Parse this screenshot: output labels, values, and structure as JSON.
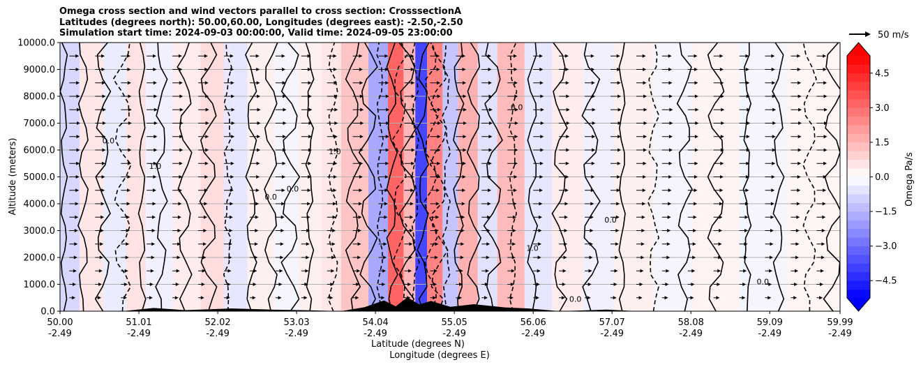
{
  "titles": {
    "line1": "Omega cross section and wind vectors parallel to cross section: CrosssectionA",
    "line2": "Latitudes (degrees north): 50.00,60.00, Longitudes (degrees east): -2.50,-2.50",
    "line3": "Simulation start time: 2024-09-03 00:00:00, Valid time: 2024-09-05 23:00:00"
  },
  "wind_key": {
    "label": "50 m/s"
  },
  "chart_data": {
    "type": "heatmap",
    "title": "Omega cross section and wind vectors parallel to cross section: CrosssectionA",
    "ylabel": "Altitude (meters)",
    "xlabel_lat": "Latitude (degrees N)",
    "xlabel_lon": "Longitude (degrees E)",
    "ylim": [
      0,
      10000
    ],
    "xlim": [
      50.0,
      59.99
    ],
    "y_ticks": [
      "0.0",
      "1000.0",
      "2000.0",
      "3000.0",
      "4000.0",
      "5000.0",
      "6000.0",
      "7000.0",
      "8000.0",
      "9000.0",
      "10000.0"
    ],
    "y_tick_values": [
      0,
      1000,
      2000,
      3000,
      4000,
      5000,
      6000,
      7000,
      8000,
      9000,
      10000
    ],
    "x_ticks": [
      {
        "lat": "50.00",
        "lon": "-2.49",
        "v": 50.0
      },
      {
        "lat": "51.01",
        "lon": "-2.49",
        "v": 51.01
      },
      {
        "lat": "52.02",
        "lon": "-2.49",
        "v": 52.02
      },
      {
        "lat": "53.03",
        "lon": "-2.49",
        "v": 53.03
      },
      {
        "lat": "54.04",
        "lon": "-2.49",
        "v": 54.04
      },
      {
        "lat": "55.05",
        "lon": "-2.49",
        "v": 55.05
      },
      {
        "lat": "56.06",
        "lon": "-2.49",
        "v": 56.06
      },
      {
        "lat": "57.07",
        "lon": "-2.49",
        "v": 57.07
      },
      {
        "lat": "58.08",
        "lon": "-2.49",
        "v": 58.08
      },
      {
        "lat": "59.09",
        "lon": "-2.49",
        "v": 59.09
      },
      {
        "lat": "59.99",
        "lon": "-2.49",
        "v": 59.99
      }
    ],
    "colorbar": {
      "label": "Omega Pa/s",
      "range": [
        -5.25,
        5.25
      ],
      "ticks": [
        "4.5",
        "3.0",
        "1.5",
        "0.0",
        "−1.5",
        "−3.0",
        "−4.5"
      ],
      "tick_values": [
        4.5,
        3.0,
        1.5,
        0.0,
        -1.5,
        -3.0,
        -4.5
      ],
      "extend": "both",
      "cmap": "bwr"
    },
    "omega_bands": [
      {
        "x0": 50.0,
        "x1": 50.25,
        "omega": -0.8
      },
      {
        "x0": 50.25,
        "x1": 50.55,
        "omega": 0.5
      },
      {
        "x0": 50.55,
        "x1": 50.85,
        "omega": -0.4
      },
      {
        "x0": 50.85,
        "x1": 51.1,
        "omega": 0.6
      },
      {
        "x0": 51.1,
        "x1": 51.45,
        "omega": -0.3
      },
      {
        "x0": 51.45,
        "x1": 51.8,
        "omega": 0.4
      },
      {
        "x0": 51.8,
        "x1": 52.1,
        "omega": 0.7
      },
      {
        "x0": 52.1,
        "x1": 52.4,
        "omega": -0.5
      },
      {
        "x0": 52.4,
        "x1": 52.75,
        "omega": 0.3
      },
      {
        "x0": 52.75,
        "x1": 53.05,
        "omega": -0.2
      },
      {
        "x0": 53.05,
        "x1": 53.35,
        "omega": 0.3
      },
      {
        "x0": 53.35,
        "x1": 53.6,
        "omega": 0.5
      },
      {
        "x0": 53.6,
        "x1": 53.95,
        "omega": 1.2
      },
      {
        "x0": 53.95,
        "x1": 54.2,
        "omega": -1.8
      },
      {
        "x0": 54.2,
        "x1": 54.4,
        "omega": 3.2
      },
      {
        "x0": 54.4,
        "x1": 54.55,
        "omega": 1.5
      },
      {
        "x0": 54.55,
        "x1": 54.7,
        "omega": -3.8
      },
      {
        "x0": 54.7,
        "x1": 54.9,
        "omega": 2.6
      },
      {
        "x0": 54.9,
        "x1": 55.1,
        "omega": -1.2
      },
      {
        "x0": 55.1,
        "x1": 55.35,
        "omega": 1.6
      },
      {
        "x0": 55.35,
        "x1": 55.6,
        "omega": -0.6
      },
      {
        "x0": 55.6,
        "x1": 55.95,
        "omega": 1.4
      },
      {
        "x0": 55.95,
        "x1": 56.3,
        "omega": -0.5
      },
      {
        "x0": 56.3,
        "x1": 56.7,
        "omega": 0.4
      },
      {
        "x0": 56.7,
        "x1": 57.1,
        "omega": -0.3
      },
      {
        "x0": 57.1,
        "x1": 57.6,
        "omega": 0.3
      },
      {
        "x0": 57.6,
        "x1": 58.1,
        "omega": -0.2
      },
      {
        "x0": 58.1,
        "x1": 58.7,
        "omega": 0.25
      },
      {
        "x0": 58.7,
        "x1": 59.3,
        "omega": -0.2
      },
      {
        "x0": 59.3,
        "x1": 59.99,
        "omega": 0.2
      }
    ],
    "contour_lines_lat": [
      50.05,
      50.3,
      50.55,
      50.8,
      51.05,
      51.3,
      51.6,
      51.9,
      52.15,
      52.45,
      52.7,
      52.95,
      53.2,
      53.5,
      53.75,
      53.95,
      54.1,
      54.25,
      54.35,
      54.45,
      54.55,
      54.65,
      54.75,
      54.85,
      54.95,
      55.1,
      55.3,
      55.55,
      55.8,
      56.05,
      56.4,
      56.8,
      57.2,
      57.6,
      58.0,
      58.4,
      58.8,
      59.2,
      59.6,
      59.9
    ],
    "contour_labels": [
      {
        "text": "0.0",
        "lat": 52.98,
        "alt": 4450
      },
      {
        "text": "0.0",
        "lat": 52.7,
        "alt": 4150
      },
      {
        "text": "1.0",
        "lat": 53.52,
        "alt": 5850
      },
      {
        "text": "1.0",
        "lat": 51.22,
        "alt": 5300
      },
      {
        "text": "0.0",
        "lat": 50.62,
        "alt": 6250
      },
      {
        "text": "0.0",
        "lat": 59.0,
        "alt": 1000
      },
      {
        "text": "0.0",
        "lat": 55.85,
        "alt": 7500
      },
      {
        "text": "1.0",
        "lat": 56.05,
        "alt": 2250
      },
      {
        "text": "0.0",
        "lat": 56.6,
        "alt": 350
      },
      {
        "text": "0.0",
        "lat": 57.05,
        "alt": 3300
      }
    ],
    "terrain": [
      {
        "lat": 50.0,
        "alt": 0
      },
      {
        "lat": 50.8,
        "alt": 0
      },
      {
        "lat": 51.2,
        "alt": 120
      },
      {
        "lat": 51.6,
        "alt": 40
      },
      {
        "lat": 52.2,
        "alt": 100
      },
      {
        "lat": 52.7,
        "alt": 60
      },
      {
        "lat": 53.2,
        "alt": 30
      },
      {
        "lat": 53.6,
        "alt": 0
      },
      {
        "lat": 53.9,
        "alt": 150
      },
      {
        "lat": 54.15,
        "alt": 400
      },
      {
        "lat": 54.3,
        "alt": 180
      },
      {
        "lat": 54.45,
        "alt": 520
      },
      {
        "lat": 54.6,
        "alt": 250
      },
      {
        "lat": 54.75,
        "alt": 380
      },
      {
        "lat": 55.0,
        "alt": 160
      },
      {
        "lat": 55.3,
        "alt": 260
      },
      {
        "lat": 55.7,
        "alt": 140
      },
      {
        "lat": 56.0,
        "alt": 100
      },
      {
        "lat": 56.4,
        "alt": 0
      },
      {
        "lat": 57.0,
        "alt": 60
      },
      {
        "lat": 57.4,
        "alt": 0
      },
      {
        "lat": 59.99,
        "alt": 0
      }
    ],
    "wind_vectors": {
      "lat_spacing": 0.33,
      "alt_levels": [
        500,
        1000,
        1500,
        2000,
        2500,
        3000,
        3500,
        4000,
        4500,
        5000,
        5500,
        6000,
        6500,
        7000,
        7500,
        8000,
        8500,
        9000,
        9500
      ],
      "u_profile": [
        8,
        10,
        12,
        14,
        15,
        16,
        17,
        18,
        19,
        20,
        21,
        22,
        22,
        23,
        23,
        22,
        21,
        20,
        19
      ],
      "key_speed": 50
    }
  }
}
